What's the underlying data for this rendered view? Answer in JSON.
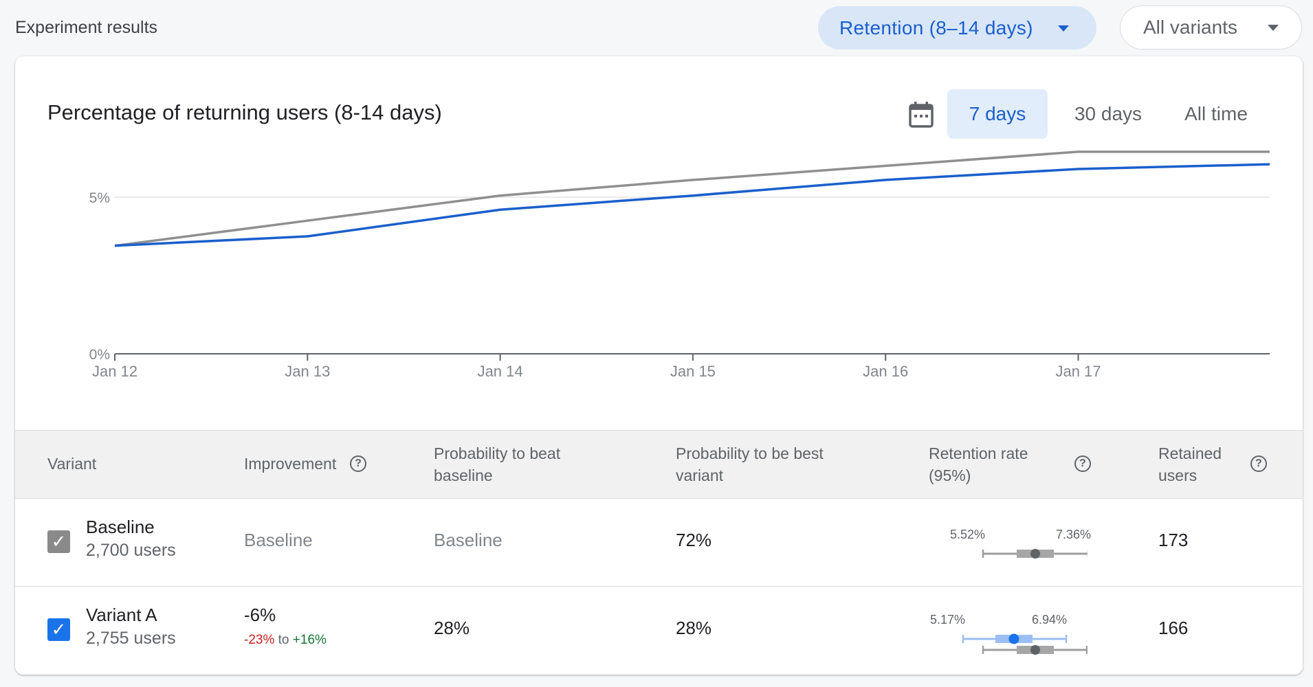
{
  "header": {
    "title": "Experiment results",
    "metric_select": "Retention (8–14 days)",
    "variant_select": "All variants"
  },
  "chart_card": {
    "title": "Percentage of returning users (8-14 days)",
    "ranges": [
      "7 days",
      "30 days",
      "All time"
    ],
    "active_range": "7 days",
    "calendar_icon": "calendar-icon"
  },
  "chart_data": {
    "type": "line",
    "title": "Percentage of returning users (8-14 days)",
    "x": [
      "Jan 12",
      "Jan 13",
      "Jan 14",
      "Jan 15",
      "Jan 16",
      "Jan 17",
      "Jan 18"
    ],
    "xticks": [
      "Jan 12",
      "Jan 13",
      "Jan 14",
      "Jan 15",
      "Jan 16",
      "Jan 17"
    ],
    "yticks": [
      "0%",
      "5%"
    ],
    "ytick_values": [
      0,
      5
    ],
    "ylim": [
      0,
      7.5
    ],
    "grid": true,
    "series": [
      {
        "color": "#8f8f8f",
        "values": [
          3.45,
          4.25,
          5.05,
          5.55,
          6.0,
          6.45,
          6.45
        ]
      },
      {
        "color": "#1a5fcc",
        "values": [
          3.45,
          3.75,
          4.6,
          5.05,
          5.55,
          5.9,
          6.05
        ]
      }
    ]
  },
  "table": {
    "headers": {
      "variant": "Variant",
      "improvement": "Improvement",
      "prob_beat_1": "Probability to beat",
      "prob_beat_2": "baseline",
      "prob_best_1": "Probability to be best",
      "prob_best_2": "variant",
      "retention_1": "Retention rate",
      "retention_2": "(95%)",
      "retained_1": "Retained",
      "retained_2": "users"
    },
    "help_glyph": "?",
    "rows": [
      {
        "name": "Baseline",
        "users": "2,700 users",
        "improvement": "Baseline",
        "prob_beat": "Baseline",
        "prob_best": "72%",
        "ci_low": "5.52%",
        "ci_high": "7.36%",
        "retained": "173"
      },
      {
        "name": "Variant A",
        "users": "2,755 users",
        "improvement": "-6%",
        "range_low": "-23%",
        "range_to": "to",
        "range_high": "+16%",
        "prob_beat": "28%",
        "prob_best": "28%",
        "ci_low": "5.17%",
        "ci_high": "6.94%",
        "retained": "166"
      }
    ]
  },
  "checkmark_glyph": "✓"
}
